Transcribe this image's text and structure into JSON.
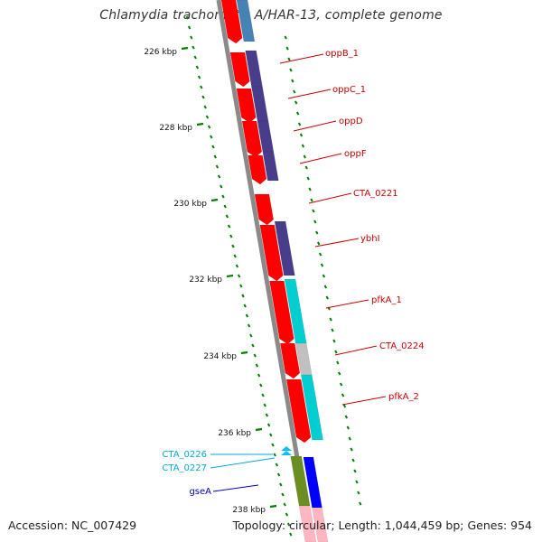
{
  "title": "Chlamydia trachomatis A/HAR-13, complete genome",
  "accession": "Accession: NC_007429",
  "topology": "Topology: circular; Length: 1,044,459 bp; Genes: 954",
  "colors": {
    "backbone": "#8a8a8a",
    "cds": "#ff0000",
    "steel_blue": "#4682b4",
    "slate_blue": "#483d8b",
    "turquoise": "#00ced1",
    "silver": "#c0c0c0",
    "olive": "#6b8e23",
    "blue": "#0000ff",
    "deep_sky_blue": "#00bfff",
    "pink": "#ffb6c1",
    "ticks": "#008000",
    "label_red": "#cc0000",
    "label_cyan": "#00aadd",
    "label_blue": "#0000cc"
  },
  "kbp_ticks": [
    "226 kbp",
    "228 kbp",
    "230 kbp",
    "232 kbp",
    "234 kbp",
    "236 kbp",
    "238 kbp"
  ],
  "gene_labels": [
    {
      "text": "oppB_1",
      "color": "label_red"
    },
    {
      "text": "oppC_1",
      "color": "label_red"
    },
    {
      "text": "oppD",
      "color": "label_red"
    },
    {
      "text": "oppF",
      "color": "label_red"
    },
    {
      "text": "CTA_0221",
      "color": "label_red"
    },
    {
      "text": "ybhI",
      "color": "label_red"
    },
    {
      "text": "pfkA_1",
      "color": "label_red"
    },
    {
      "text": "CTA_0224",
      "color": "label_red"
    },
    {
      "text": "pfkA_2",
      "color": "label_red"
    },
    {
      "text": "CTA_0226",
      "color": "label_cyan"
    },
    {
      "text": "CTA_0227",
      "color": "label_cyan"
    },
    {
      "text": "gseA",
      "color": "label_blue"
    }
  ]
}
